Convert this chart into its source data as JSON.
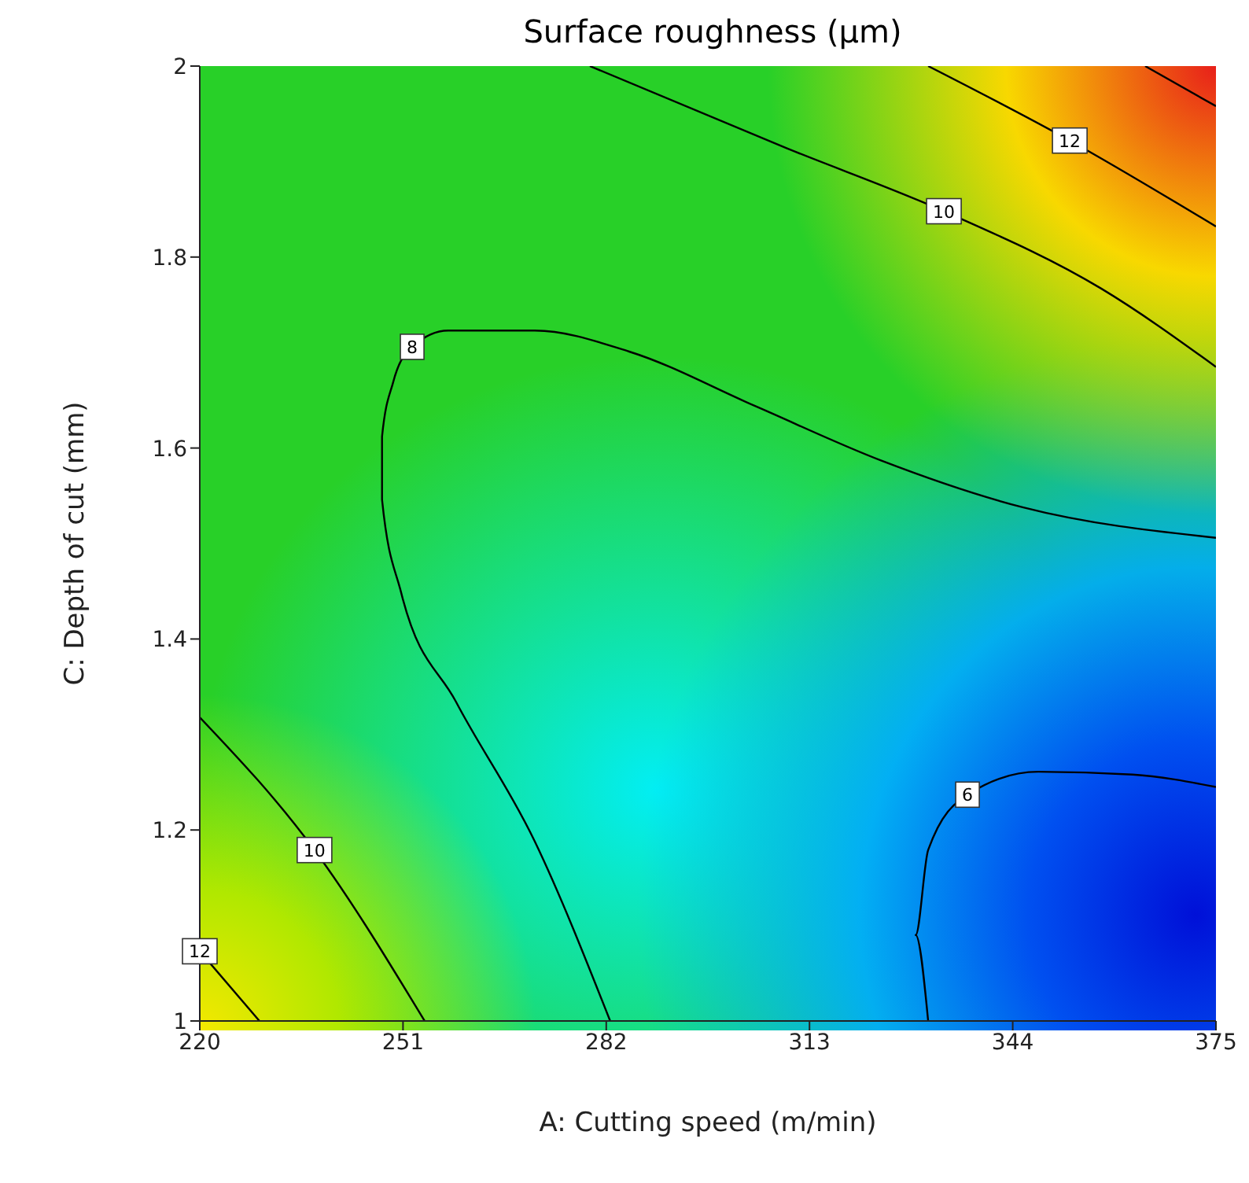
{
  "chart_data": {
    "type": "line",
    "title": "Surface roughness  (µm)",
    "xlabel": "A: Cutting speed (m/min)",
    "ylabel": "C: Depth of cut (mm)",
    "xlim": [
      220,
      375
    ],
    "ylim": [
      1,
      2
    ],
    "xticks": [
      220,
      251,
      282,
      313,
      344,
      375
    ],
    "yticks": [
      1,
      1.2,
      1.4,
      1.6,
      1.8,
      2
    ],
    "line_style": "solid",
    "series": [
      {
        "name": "6",
        "color": "#000000",
        "x": [
          331.1,
          329.2,
          331.1,
          337.1,
          347.9,
          362.3,
          375
        ],
        "values": [
          1.0,
          1.09,
          1.179,
          1.237,
          1.261,
          1.258,
          1.245
        ]
      },
      {
        "name": "8",
        "color": "#000000",
        "x": [
          282.6,
          271.1,
          259.1,
          250.7,
          247.8,
          247.8,
          249.5,
          252.4,
          257.9,
          271.1,
          285.5,
          304.7,
          323.9,
          345.5,
          375
        ],
        "values": [
          1.0,
          1.188,
          1.334,
          1.449,
          1.546,
          1.612,
          1.669,
          1.706,
          1.723,
          1.723,
          1.701,
          1.644,
          1.587,
          1.538,
          1.506
        ]
      },
      {
        "name": "10",
        "color": "#000000",
        "x": [
          279.5,
          309.5,
          333.5,
          357.5,
          375
        ],
        "values": [
          2.0,
          1.914,
          1.848,
          1.767,
          1.685
        ]
      },
      {
        "name": "12",
        "color": "#000000",
        "x": [
          331.1,
          352.7,
          375
        ],
        "values": [
          2.0,
          1.922,
          1.832
        ]
      },
      {
        "color": "#000000",
        "x": [
          364.2,
          375
        ],
        "values": [
          2.0,
          1.958
        ]
      },
      {
        "name": "10",
        "color": "#000000",
        "x": [
          220,
          237.5,
          254.3
        ],
        "values": [
          1.318,
          1.179,
          1.0
        ]
      },
      {
        "name": "12",
        "color": "#000000",
        "x": [
          220,
          229.1
        ],
        "values": [
          1.073,
          1.0
        ]
      }
    ]
  }
}
